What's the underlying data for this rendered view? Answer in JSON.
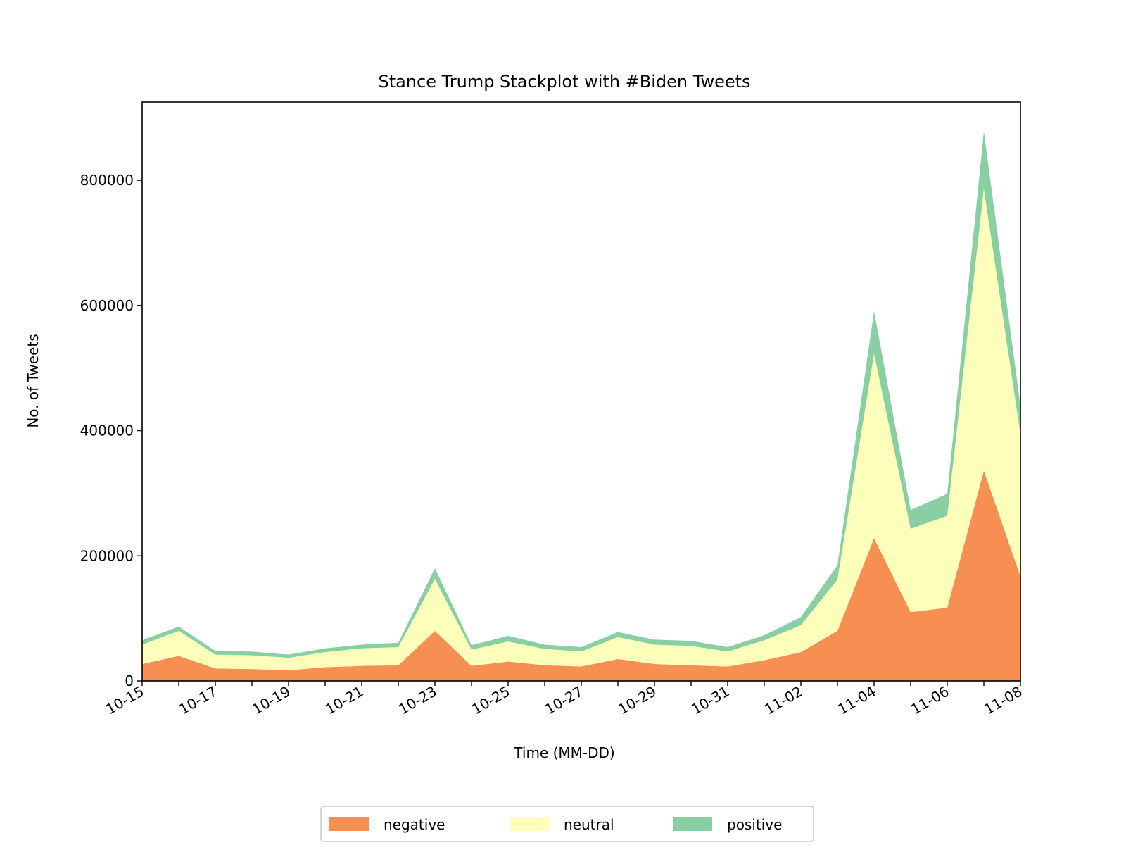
{
  "chart_data": {
    "type": "area",
    "stacked": true,
    "title": "Stance Trump Stackplot with #Biden Tweets",
    "xlabel": "Time (MM-DD)",
    "ylabel": "No. of Tweets",
    "x": [
      "10-15",
      "10-16",
      "10-17",
      "10-18",
      "10-19",
      "10-20",
      "10-21",
      "10-22",
      "10-23",
      "10-24",
      "10-25",
      "10-26",
      "10-27",
      "10-28",
      "10-29",
      "10-30",
      "10-31",
      "11-01",
      "11-02",
      "11-03",
      "11-04",
      "11-05",
      "11-06",
      "11-07",
      "11-08"
    ],
    "x_tick_labels": [
      "10-15",
      "10-17",
      "10-19",
      "10-21",
      "10-23",
      "10-25",
      "10-27",
      "10-29",
      "10-31",
      "11-02",
      "11-04",
      "11-06",
      "11-08"
    ],
    "y_ticks": [
      0,
      200000,
      400000,
      600000,
      800000
    ],
    "y_tick_labels": [
      "0",
      "200000",
      "400000",
      "600000",
      "800000"
    ],
    "ylim": [
      0,
      925000
    ],
    "grid": false,
    "legend_position": "bottom-center",
    "series": [
      {
        "name": "negative",
        "color": "#f88f52",
        "values": [
          27000,
          40000,
          20000,
          19000,
          17000,
          22000,
          24000,
          25000,
          80000,
          24000,
          31000,
          25000,
          23000,
          35000,
          27000,
          25000,
          23000,
          33000,
          46000,
          80000,
          228000,
          110000,
          117000,
          336000,
          167000
        ]
      },
      {
        "name": "neutral",
        "color": "#fefebb",
        "values": [
          31000,
          40000,
          22000,
          22000,
          20000,
          24000,
          28000,
          29000,
          83000,
          26000,
          32000,
          26000,
          24000,
          35000,
          31000,
          31000,
          24000,
          32000,
          43000,
          82000,
          295000,
          133000,
          147000,
          451000,
          227000
        ]
      },
      {
        "name": "positive",
        "color": "#88cfa4",
        "values": [
          7000,
          7000,
          6000,
          6000,
          5000,
          6000,
          6000,
          7000,
          17000,
          7000,
          9000,
          7000,
          7000,
          8000,
          8000,
          8000,
          7000,
          8000,
          13000,
          23000,
          68000,
          30000,
          35000,
          91000,
          45000
        ]
      }
    ]
  }
}
